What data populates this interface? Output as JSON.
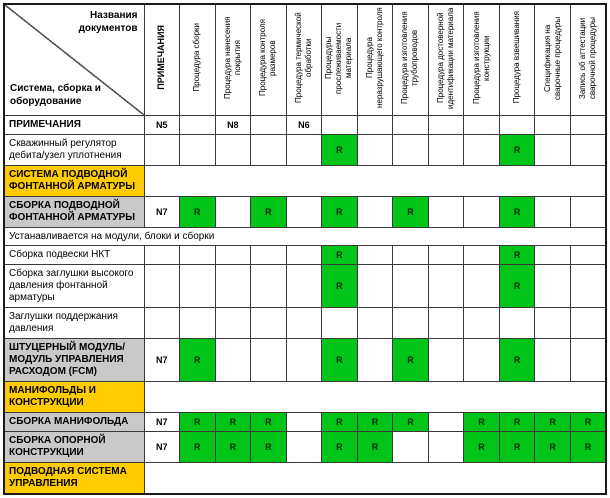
{
  "corner": {
    "top": "Названия документов",
    "bottom": "Система, сборка и оборудование"
  },
  "columns": [
    {
      "label": "ПРИМЕЧАНИЯ",
      "bold": true
    },
    {
      "label": "Процедура сборки",
      "bold": false
    },
    {
      "label": "Процедура нанесения покрытия",
      "bold": false
    },
    {
      "label": "Процедура контроля размеров",
      "bold": false
    },
    {
      "label": "Процедура термической обработки",
      "bold": false
    },
    {
      "label": "Процедуры прослеживаемости материала",
      "bold": false
    },
    {
      "label": "Процедура неразрушающего контроля",
      "bold": false
    },
    {
      "label": "Процедура изготовления трубопроводов",
      "bold": false
    },
    {
      "label": "Процедура достоверной идентификации материала",
      "bold": false
    },
    {
      "label": "Процедура изготовления конструкции",
      "bold": false
    },
    {
      "label": "Процедура взвешивания",
      "bold": false
    },
    {
      "label": "Спецификация на сварочные процедуры",
      "bold": false
    },
    {
      "label": "Запись об аттестации сварочной процедуры",
      "bold": false
    }
  ],
  "rows": [
    {
      "label": "ПРИМЕЧАНИЯ",
      "type": "data",
      "style": "bold",
      "cells": [
        "N5",
        "",
        "N8",
        "",
        "N6",
        "",
        "",
        "",
        "",
        "",
        "",
        "",
        ""
      ]
    },
    {
      "label": "Скважинный регулятор дебита/узел уплотнения",
      "type": "data",
      "style": "plain",
      "cells": [
        "",
        "",
        "",
        "",
        "",
        "R",
        "",
        "",
        "",
        "",
        "R",
        "",
        ""
      ]
    },
    {
      "label": "СИСТЕМА ПОДВОДНОЙ ФОНТАННОЙ АРМАТУРЫ",
      "type": "merged",
      "style": "section"
    },
    {
      "label": "СБОРКА ПОДВОДНОЙ ФОНТАННОЙ АРМАТУРЫ",
      "type": "data",
      "style": "assembly",
      "cells": [
        "N7",
        "R",
        "",
        "R",
        "",
        "R",
        "",
        "R",
        "",
        "",
        "R",
        "",
        ""
      ]
    },
    {
      "label": "Устанавливается на модули, блоки и сборки",
      "type": "fullspan",
      "style": "plain"
    },
    {
      "label": "Сборка подвески НКТ",
      "type": "data",
      "style": "plain",
      "cells": [
        "",
        "",
        "",
        "",
        "",
        "R",
        "",
        "",
        "",
        "",
        "R",
        "",
        ""
      ]
    },
    {
      "label": "Сборка заглушки высокого давления фонтанной арматуры",
      "type": "data",
      "style": "plain",
      "cells": [
        "",
        "",
        "",
        "",
        "",
        "R",
        "",
        "",
        "",
        "",
        "R",
        "",
        ""
      ]
    },
    {
      "label": "Заглушки поддержания давления",
      "type": "data",
      "style": "plain",
      "cells": [
        "",
        "",
        "",
        "",
        "",
        "",
        "",
        "",
        "",
        "",
        "",
        "",
        ""
      ]
    },
    {
      "label": "ШТУЦЕРНЫЙ МОДУЛЬ/МОДУЛЬ УПРАВЛЕНИЯ РАСХОДОМ (FCM)",
      "type": "data",
      "style": "assembly",
      "cells": [
        "N7",
        "R",
        "",
        "",
        "",
        "R",
        "",
        "R",
        "",
        "",
        "R",
        "",
        ""
      ]
    },
    {
      "label": "МАНИФОЛЬДЫ И КОНСТРУКЦИИ",
      "type": "merged",
      "style": "section"
    },
    {
      "label": "СБОРКА МАНИФОЛЬДА",
      "type": "data",
      "style": "assembly",
      "cells": [
        "N7",
        "R",
        "R",
        "R",
        "",
        "R",
        "R",
        "R",
        "",
        "R",
        "R",
        "R",
        "R"
      ]
    },
    {
      "label": "СБОРКА ОПОРНОЙ КОНСТРУКЦИИ",
      "type": "data",
      "style": "assembly",
      "cells": [
        "N7",
        "R",
        "R",
        "R",
        "",
        "R",
        "R",
        "",
        "",
        "R",
        "R",
        "R",
        "R"
      ]
    },
    {
      "label": "ПОДВОДНАЯ СИСТЕМА УПРАВЛЕНИЯ",
      "type": "merged",
      "style": "section"
    }
  ],
  "colors": {
    "section_row": "#FFCC00",
    "assembly_row": "#C9C9C9",
    "mark_cell": "#00C417"
  },
  "marks": {
    "review_mark": "R",
    "notes_used": [
      "N5",
      "N6",
      "N7",
      "N8"
    ]
  }
}
